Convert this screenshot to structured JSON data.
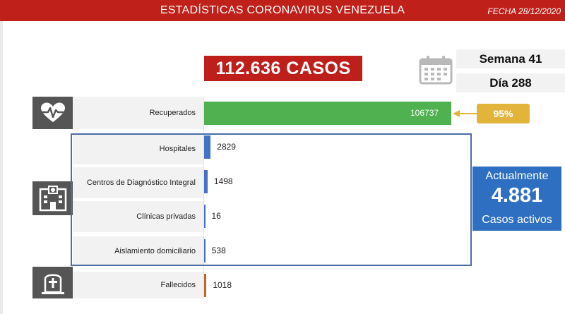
{
  "header": {
    "title": "ESTADÍSTICAS CORONAVIRUS VENEZUELA",
    "date": "FECHA 28/12/2020"
  },
  "total_cases": "112.636 CASOS",
  "week": "Semana 41",
  "day": "Día 288",
  "recovered_percent": "95%",
  "active": {
    "top": "Actualmente",
    "number": "4.881",
    "bottom": "Casos activos"
  },
  "icons": {
    "recovered": "heart-pulse-icon",
    "hospital": "hospital-icon",
    "deceased": "tombstone-icon",
    "calendar": "calendar-icon"
  },
  "chart_data": {
    "type": "bar",
    "orientation": "horizontal",
    "categories": [
      "Recuperados",
      "Hospitales",
      "Centros de Diagnóstico Integral",
      "Clínicas privadas",
      "Aislamiento domiciliario",
      "Fallecidos"
    ],
    "values": [
      106737,
      2829,
      1498,
      16,
      538,
      1018
    ],
    "value_labels": [
      "106737",
      "2829",
      "1498",
      "16",
      "538",
      "1018"
    ],
    "colors": [
      "#4fb150",
      "#4472c4",
      "#4472c4",
      "#4472c4",
      "#4472c4",
      "#c0652e"
    ],
    "xlim": [
      0,
      106737
    ],
    "grid": false,
    "legend": "none"
  }
}
